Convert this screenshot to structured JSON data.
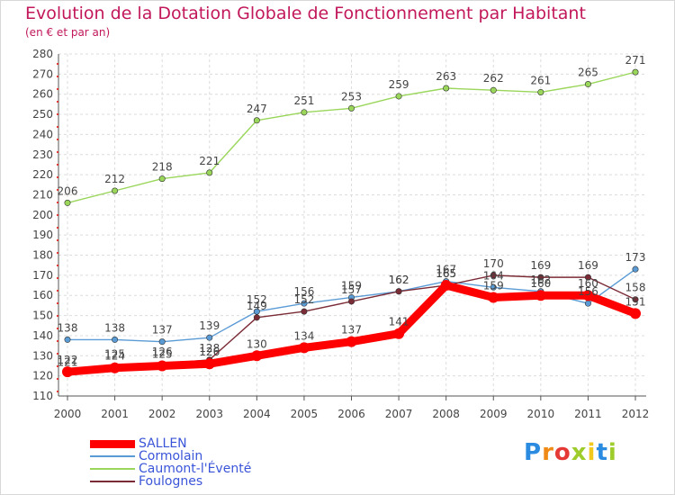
{
  "title": "Evolution de la Dotation Globale de Fonctionnement par Habitant",
  "subtitle": "(en € et par an)",
  "logo_text": "Proxiti",
  "chart_data": {
    "type": "line",
    "x": [
      "2000",
      "2001",
      "2002",
      "2003",
      "2004",
      "2005",
      "2006",
      "2007",
      "2008",
      "2009",
      "2010",
      "2011",
      "2012"
    ],
    "ylim": [
      110,
      280
    ],
    "yticks": [
      110,
      120,
      130,
      140,
      150,
      160,
      170,
      180,
      190,
      200,
      210,
      220,
      230,
      240,
      250,
      260,
      270,
      280
    ],
    "grid": true,
    "legend": "bottom-left",
    "series": [
      {
        "name": "SALLEN",
        "color": "#ff0000",
        "values": [
          122,
          124,
          125,
          126,
          130,
          134,
          137,
          141,
          165,
          159,
          160,
          160,
          151
        ]
      },
      {
        "name": "Cormolain",
        "color": "#5b9bd5",
        "values": [
          138,
          138,
          137,
          139,
          152,
          156,
          159,
          162,
          167,
          164,
          162,
          156,
          173
        ]
      },
      {
        "name": "Caumont-l'Éventé",
        "color": "#99d65a",
        "values": [
          206,
          212,
          218,
          221,
          247,
          251,
          253,
          259,
          263,
          262,
          261,
          265,
          271
        ]
      },
      {
        "name": "Foulognes",
        "color": "#7b2b35",
        "values": [
          121,
          125,
          126,
          128,
          149,
          152,
          157,
          162,
          165,
          170,
          169,
          169,
          158
        ]
      }
    ]
  }
}
